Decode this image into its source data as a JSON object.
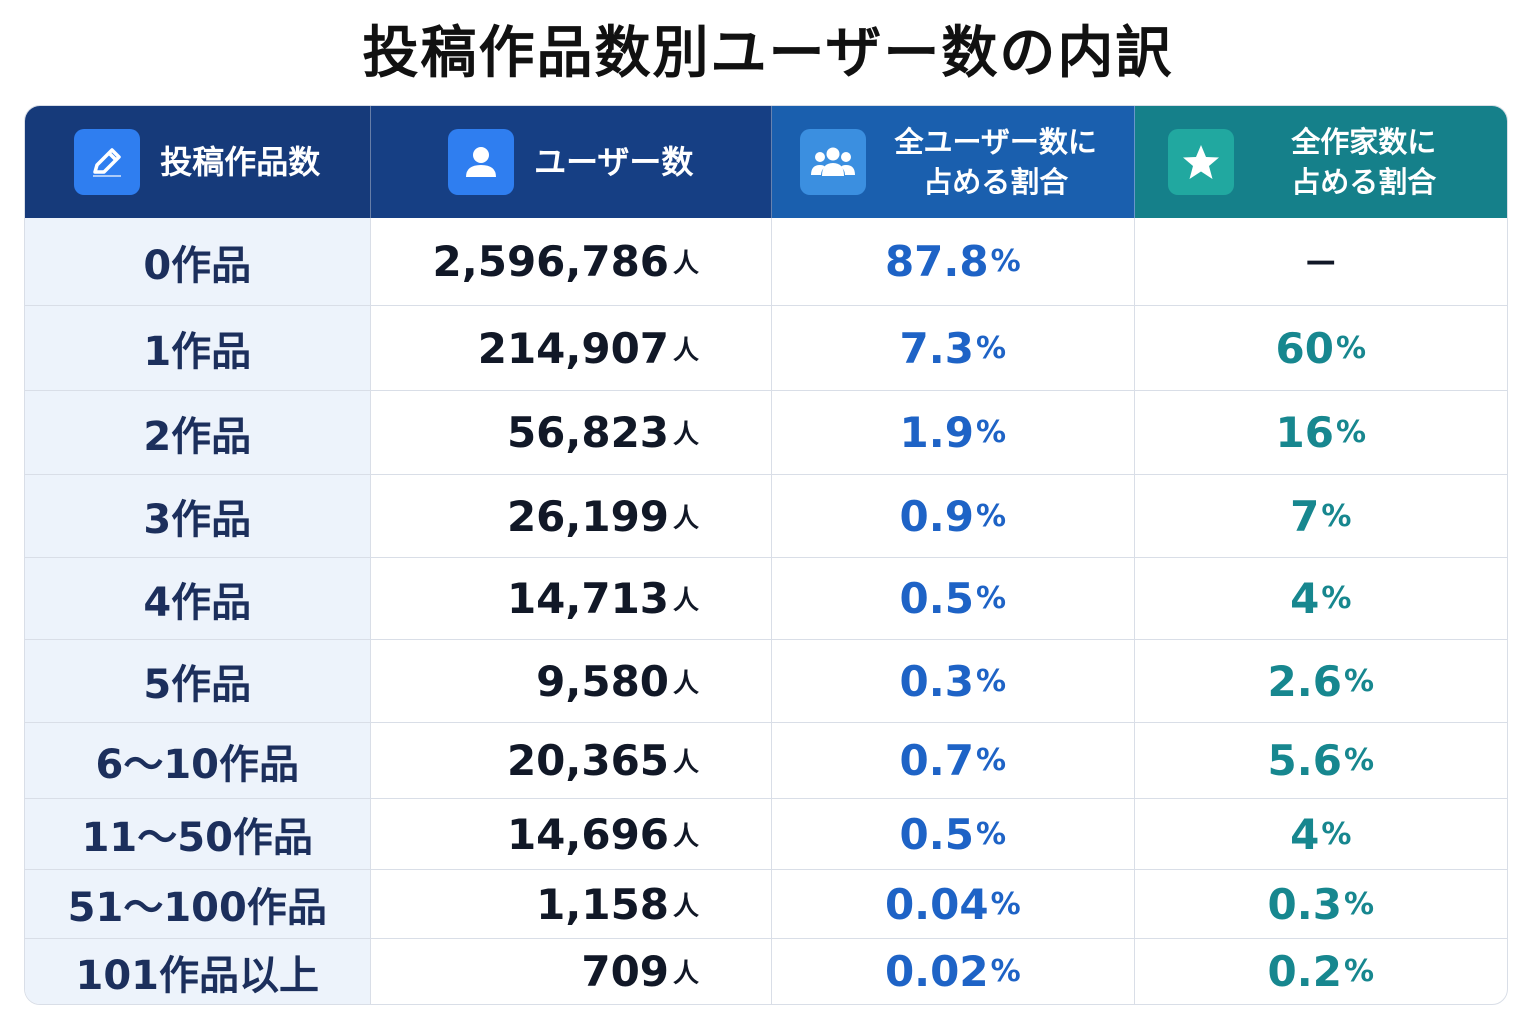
{
  "title": "投稿作品数別ユーザー数の内訳",
  "headers": {
    "col1": "投稿作品数",
    "col2": "ユーザー数",
    "col3_line1": "全ユーザー数に",
    "col3_line2": "占める割合",
    "col4_line1": "全作家数に",
    "col4_line2": "占める割合"
  },
  "icons": {
    "col1": "pencil-icon",
    "col2": "user-icon",
    "col3": "group-icon",
    "col4": "star-icon"
  },
  "colors": {
    "header_col1": "#163a7a",
    "header_col3": "#1a5fae",
    "header_col4": "#15808a",
    "user_share_text": "#1e63c6",
    "author_share_text": "#17878f"
  },
  "unit_person": "人",
  "percent_sign": "%",
  "rows": [
    {
      "works": "0作品",
      "users": "2,596,786",
      "user_share": "87.8",
      "author_share": "—"
    },
    {
      "works": "1作品",
      "users": "214,907",
      "user_share": "7.3",
      "author_share": "60"
    },
    {
      "works": "2作品",
      "users": "56,823",
      "user_share": "1.9",
      "author_share": "16"
    },
    {
      "works": "3作品",
      "users": "26,199",
      "user_share": "0.9",
      "author_share": "7"
    },
    {
      "works": "4作品",
      "users": "14,713",
      "user_share": "0.5",
      "author_share": "4"
    },
    {
      "works": "5作品",
      "users": "9,580",
      "user_share": "0.3",
      "author_share": "2.6"
    },
    {
      "works": "6〜10作品",
      "users": "20,365",
      "user_share": "0.7",
      "author_share": "5.6"
    },
    {
      "works": "11〜50作品",
      "users": "14,696",
      "user_share": "0.5",
      "author_share": "4"
    },
    {
      "works": "51〜100作品",
      "users": "1,158",
      "user_share": "0.04",
      "author_share": "0.3"
    },
    {
      "works": "101作品以上",
      "users": "709",
      "user_share": "0.02",
      "author_share": "0.2"
    }
  ]
}
